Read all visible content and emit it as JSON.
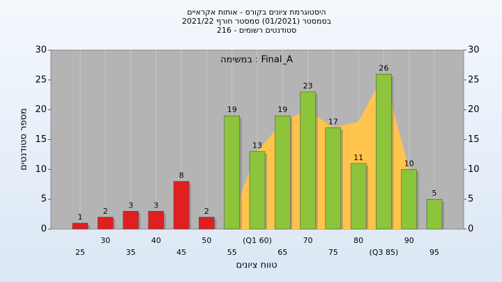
{
  "chart_data": {
    "type": "bar",
    "title": [
      "היסטוגרמת ציונים בקורס - אותות אקראיים",
      "בסמסטר  (01/2021)  סמסטר חורף 2021/22",
      "סטודנטים רשומים - 216"
    ],
    "annotation": "במשימה : Final_A",
    "xlabel": "טווח ציונים",
    "ylabel": "מספר סטודנטים",
    "categories": [
      "25",
      "30",
      "35",
      "40",
      "45",
      "50",
      "55",
      "(Q1 60)",
      "65",
      "70",
      "75",
      "80",
      "(Q3 85)",
      "90",
      "95"
    ],
    "values": [
      1,
      2,
      3,
      3,
      8,
      2,
      19,
      13,
      19,
      23,
      17,
      11,
      26,
      10,
      5
    ],
    "colors": [
      "#e02020",
      "#e02020",
      "#e02020",
      "#e02020",
      "#e02020",
      "#e02020",
      "#8cc43c",
      "#8cc43c",
      "#8cc43c",
      "#8cc43c",
      "#8cc43c",
      "#8cc43c",
      "#8cc43c",
      "#8cc43c",
      "#8cc43c"
    ],
    "area_values": [
      null,
      null,
      null,
      null,
      null,
      null,
      2,
      13,
      18,
      20,
      17,
      18,
      26,
      10,
      null
    ],
    "area_color": "#ffc44c",
    "ylim": [
      0,
      30
    ],
    "yticks": [
      0,
      5,
      10,
      15,
      20,
      25,
      30
    ],
    "y2lim": [
      0,
      30
    ],
    "y2ticks": [
      0,
      5,
      10,
      15,
      20,
      25,
      30
    ],
    "grid": "x"
  }
}
